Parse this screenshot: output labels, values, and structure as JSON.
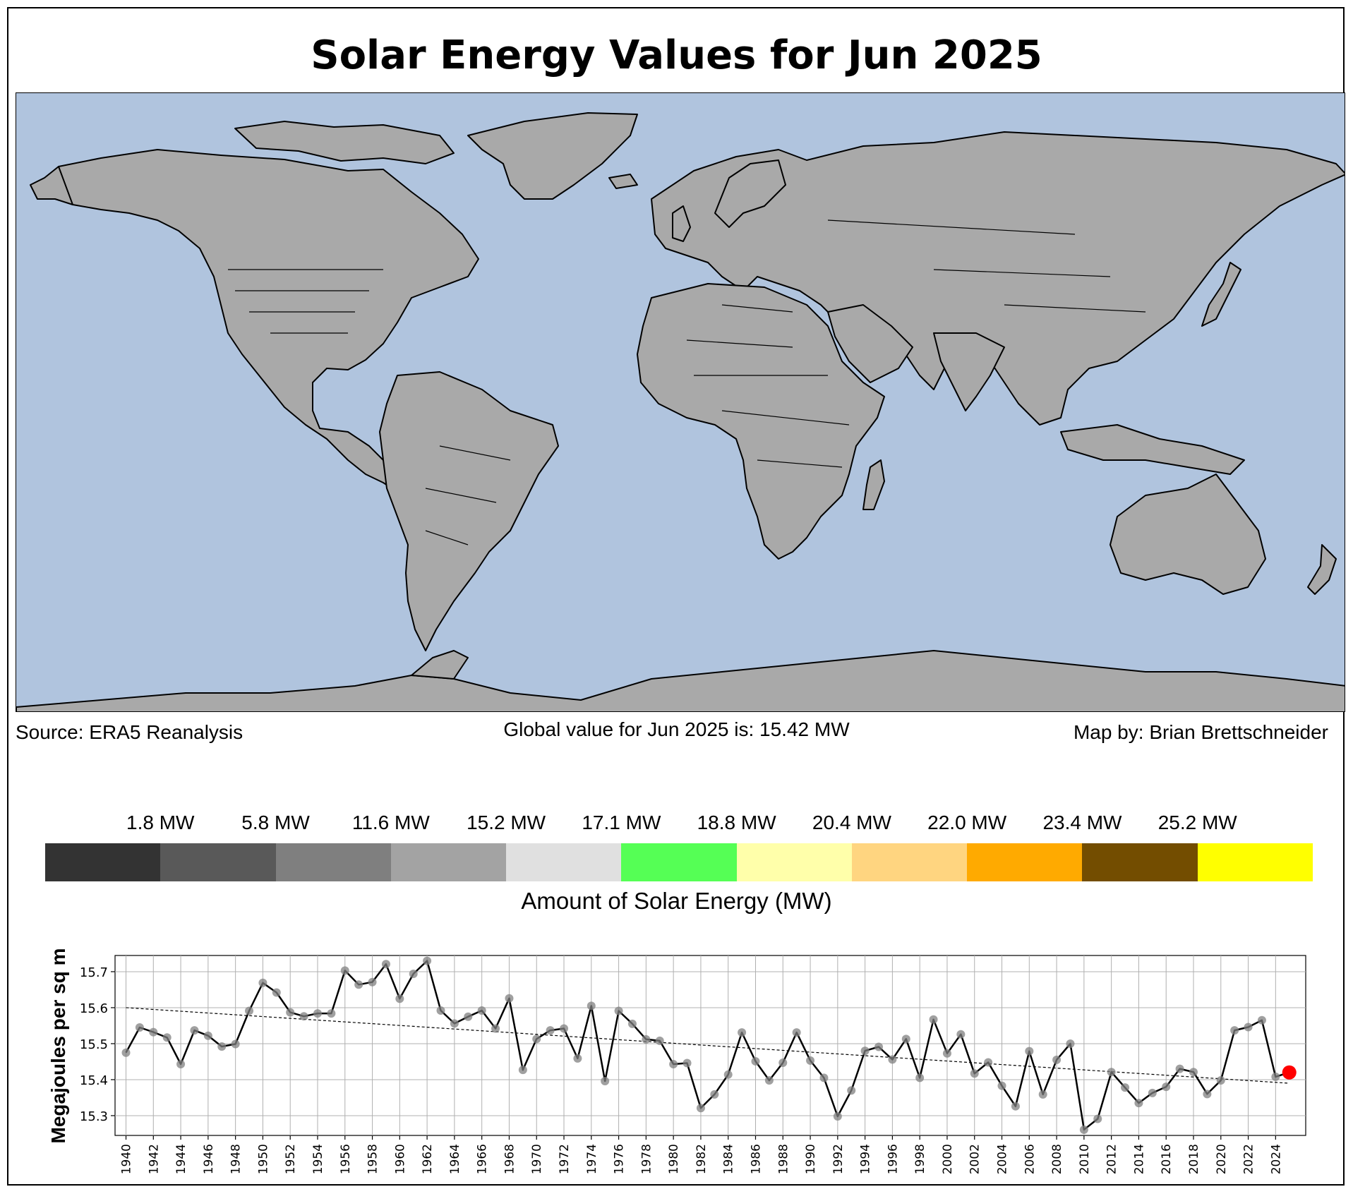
{
  "title": "Solar Energy Values for Jun 2025",
  "map": {
    "ocean_color": "#b0c4de",
    "land_color": "#a9a9a9",
    "border_color": "#000000"
  },
  "captions": {
    "source": "Source: ERA5 Reanalysis",
    "global_value": "Global value for Jun 2025 is: 15.42 MW",
    "credit": "Map by: Brian Brettschneider"
  },
  "colorbar": {
    "title": "Amount of Solar Energy (MW)",
    "labels": [
      "1.8 MW",
      "5.8 MW",
      "11.6 MW",
      "15.2 MW",
      "17.1 MW",
      "18.8 MW",
      "20.4 MW",
      "22.0 MW",
      "23.4 MW",
      "25.2 MW"
    ],
    "colors": [
      "#333333",
      "#595959",
      "#7f7f7f",
      "#a3a3a3",
      "#e0e0e0",
      "#55ff55",
      "#ffffaa",
      "#ffd580",
      "#ffaa00",
      "#734d00",
      "#ffff00"
    ]
  },
  "chart_data": {
    "type": "line",
    "ylabel": "Megajoules per sq m",
    "xlabel": "",
    "ylim": [
      15.245,
      15.745
    ],
    "xlim": [
      1939.2,
      2026.2
    ],
    "yticks": [
      "15.3",
      "15.4",
      "15.5",
      "15.6",
      "15.7"
    ],
    "xticks": [
      "1940",
      "1942",
      "1944",
      "1946",
      "1948",
      "1950",
      "1952",
      "1954",
      "1956",
      "1958",
      "1960",
      "1962",
      "1964",
      "1966",
      "1968",
      "1970",
      "1972",
      "1974",
      "1976",
      "1978",
      "1980",
      "1982",
      "1984",
      "1986",
      "1988",
      "1990",
      "1992",
      "1994",
      "1996",
      "1998",
      "2000",
      "2002",
      "2004",
      "2006",
      "2008",
      "2010",
      "2012",
      "2014",
      "2016",
      "2018",
      "2020",
      "2022",
      "2024"
    ],
    "grid": true,
    "x": [
      1940,
      1941,
      1942,
      1943,
      1944,
      1945,
      1946,
      1947,
      1948,
      1949,
      1950,
      1951,
      1952,
      1953,
      1954,
      1955,
      1956,
      1957,
      1958,
      1959,
      1960,
      1961,
      1962,
      1963,
      1964,
      1965,
      1966,
      1967,
      1968,
      1969,
      1970,
      1971,
      1972,
      1973,
      1974,
      1975,
      1976,
      1977,
      1978,
      1979,
      1980,
      1981,
      1982,
      1983,
      1984,
      1985,
      1986,
      1987,
      1988,
      1989,
      1990,
      1991,
      1992,
      1993,
      1994,
      1995,
      1996,
      1997,
      1998,
      1999,
      2000,
      2001,
      2002,
      2003,
      2004,
      2005,
      2006,
      2007,
      2008,
      2009,
      2010,
      2011,
      2012,
      2013,
      2014,
      2015,
      2016,
      2017,
      2018,
      2019,
      2020,
      2021,
      2022,
      2023,
      2024,
      2025
    ],
    "series": [
      {
        "name": "Global value",
        "values": [
          15.475,
          15.545,
          15.532,
          15.517,
          15.443,
          15.537,
          15.522,
          15.492,
          15.499,
          15.591,
          15.669,
          15.642,
          15.587,
          15.576,
          15.584,
          15.584,
          15.703,
          15.664,
          15.671,
          15.721,
          15.625,
          15.694,
          15.73,
          15.592,
          15.556,
          15.575,
          15.592,
          15.542,
          15.626,
          15.427,
          15.513,
          15.537,
          15.542,
          15.459,
          15.605,
          15.396,
          15.591,
          15.555,
          15.512,
          15.508,
          15.443,
          15.446,
          15.321,
          15.359,
          15.414,
          15.531,
          15.451,
          15.398,
          15.447,
          15.531,
          15.453,
          15.405,
          15.298,
          15.37,
          15.48,
          15.491,
          15.456,
          15.513,
          15.405,
          15.567,
          15.473,
          15.526,
          15.417,
          15.448,
          15.383,
          15.326,
          15.479,
          15.359,
          15.455,
          15.5,
          15.261,
          15.291,
          15.421,
          15.378,
          15.335,
          15.363,
          15.38,
          15.43,
          15.421,
          15.36,
          15.398,
          15.537,
          15.546,
          15.565,
          15.408,
          15.42
        ]
      },
      {
        "name": "Trend",
        "type": "linear",
        "start": [
          1940,
          15.6
        ],
        "end": [
          2025,
          15.39
        ]
      }
    ],
    "highlight": {
      "x": 2025,
      "y": 15.42,
      "color": "#ff0000"
    }
  }
}
